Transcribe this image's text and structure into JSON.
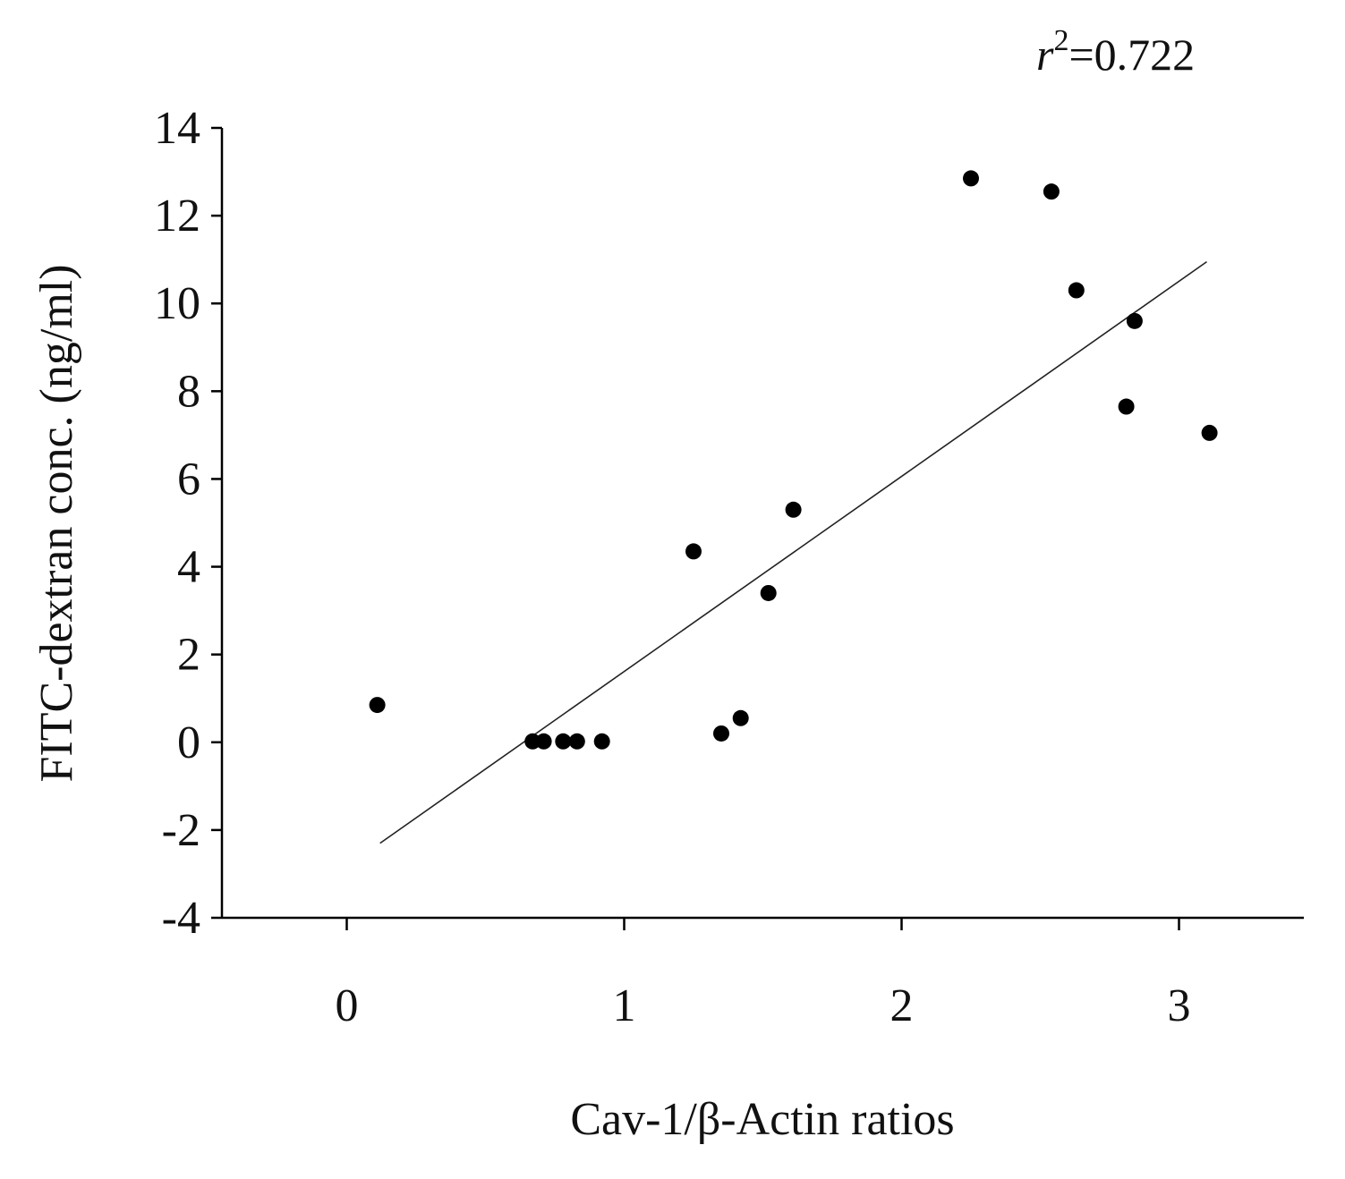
{
  "chart_data": {
    "type": "scatter",
    "title": "",
    "xlabel": "Cav-1/β-Actin ratios",
    "ylabel": "FITC-dextran conc. (ng/ml)",
    "xlim": [
      -0.45,
      3.45
    ],
    "ylim": [
      -4,
      14
    ],
    "xticks": [
      "0",
      "1",
      "2",
      "3"
    ],
    "yticks": [
      "-4",
      "-2",
      "0",
      "2",
      "4",
      "6",
      "8",
      "10",
      "12",
      "14"
    ],
    "xtick_values": [
      0,
      1,
      2,
      3
    ],
    "ytick_values": [
      -4,
      -2,
      0,
      2,
      4,
      6,
      8,
      10,
      12,
      14
    ],
    "grid": false,
    "annotation": {
      "symbol": "r",
      "exponent": "2",
      "value": "=0.722"
    },
    "points": [
      {
        "x": 0.11,
        "y": 0.85
      },
      {
        "x": 0.67,
        "y": 0.02
      },
      {
        "x": 0.71,
        "y": 0.02
      },
      {
        "x": 0.78,
        "y": 0.02
      },
      {
        "x": 0.83,
        "y": 0.02
      },
      {
        "x": 0.92,
        "y": 0.02
      },
      {
        "x": 1.25,
        "y": 4.35
      },
      {
        "x": 1.35,
        "y": 0.2
      },
      {
        "x": 1.42,
        "y": 0.55
      },
      {
        "x": 1.52,
        "y": 3.4
      },
      {
        "x": 1.61,
        "y": 5.3
      },
      {
        "x": 2.25,
        "y": 12.85
      },
      {
        "x": 2.54,
        "y": 12.55
      },
      {
        "x": 2.63,
        "y": 10.3
      },
      {
        "x": 2.81,
        "y": 7.65
      },
      {
        "x": 2.84,
        "y": 9.6
      },
      {
        "x": 3.11,
        "y": 7.05
      }
    ],
    "fit_line": {
      "x": [
        0.12,
        3.1
      ],
      "y": [
        -2.3,
        10.95
      ]
    }
  }
}
